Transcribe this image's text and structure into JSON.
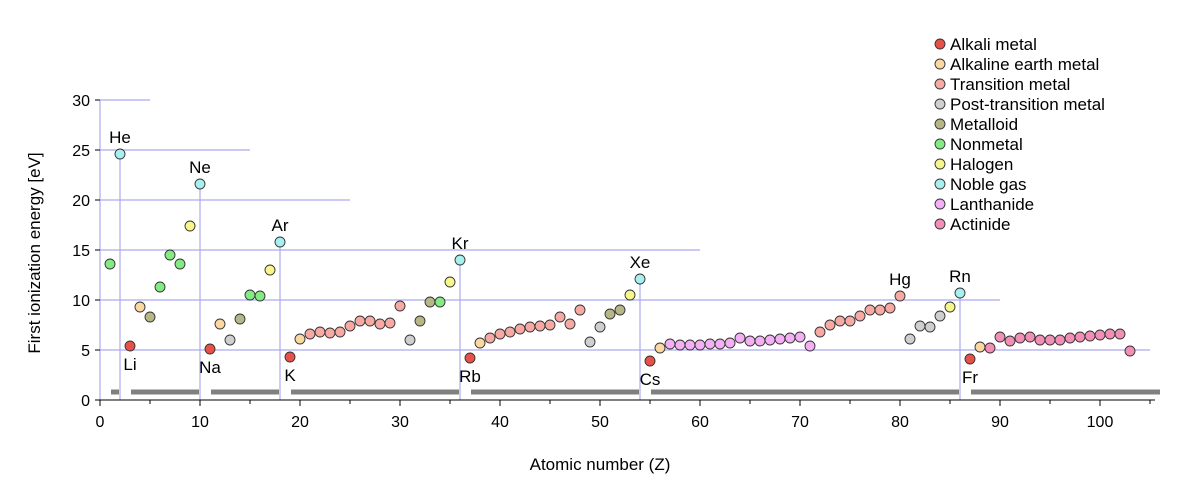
{
  "chart_data": {
    "type": "scatter",
    "title": "",
    "xlabel": "Atomic number (Z)",
    "ylabel": "First ionization energy [eV]",
    "xlim": [
      0,
      105
    ],
    "ylim": [
      0,
      30
    ],
    "x_ticks": [
      0,
      10,
      20,
      30,
      40,
      50,
      60,
      70,
      80,
      90,
      100
    ],
    "y_ticks": [
      0,
      5,
      10,
      15,
      20,
      25,
      30
    ],
    "grid": "partial guide lines to noble-gas peaks",
    "legend_position": "top-right",
    "categories": [
      {
        "key": "alkali",
        "name": "Alkali metal",
        "color": "#e8504a"
      },
      {
        "key": "alkaline",
        "name": "Alkaline earth metal",
        "color": "#fbd7a2"
      },
      {
        "key": "transition",
        "name": "Transition metal",
        "color": "#f7a9a3"
      },
      {
        "key": "post",
        "name": "Post-transition metal",
        "color": "#cfcfcf"
      },
      {
        "key": "metalloid",
        "name": "Metalloid",
        "color": "#b6b686"
      },
      {
        "key": "nonmetal",
        "name": "Nonmetal",
        "color": "#84ea84"
      },
      {
        "key": "halogen",
        "name": "Halogen",
        "color": "#f6f68a"
      },
      {
        "key": "noble",
        "name": "Noble gas",
        "color": "#a8f0f0"
      },
      {
        "key": "lanthanide",
        "name": "Lanthanide",
        "color": "#f4b0f4"
      },
      {
        "key": "actinide",
        "name": "Actinide",
        "color": "#f28fb6"
      }
    ],
    "points": [
      {
        "z": 1,
        "e": 13.6,
        "cat": "nonmetal"
      },
      {
        "z": 2,
        "e": 24.6,
        "cat": "noble",
        "label": "He"
      },
      {
        "z": 3,
        "e": 5.4,
        "cat": "alkali",
        "label": "Li"
      },
      {
        "z": 4,
        "e": 9.3,
        "cat": "alkaline"
      },
      {
        "z": 5,
        "e": 8.3,
        "cat": "metalloid"
      },
      {
        "z": 6,
        "e": 11.3,
        "cat": "nonmetal"
      },
      {
        "z": 7,
        "e": 14.5,
        "cat": "nonmetal"
      },
      {
        "z": 8,
        "e": 13.6,
        "cat": "nonmetal"
      },
      {
        "z": 9,
        "e": 17.4,
        "cat": "halogen"
      },
      {
        "z": 10,
        "e": 21.6,
        "cat": "noble",
        "label": "Ne"
      },
      {
        "z": 11,
        "e": 5.1,
        "cat": "alkali",
        "label": "Na"
      },
      {
        "z": 12,
        "e": 7.6,
        "cat": "alkaline"
      },
      {
        "z": 13,
        "e": 6.0,
        "cat": "post"
      },
      {
        "z": 14,
        "e": 8.1,
        "cat": "metalloid"
      },
      {
        "z": 15,
        "e": 10.5,
        "cat": "nonmetal"
      },
      {
        "z": 16,
        "e": 10.4,
        "cat": "nonmetal"
      },
      {
        "z": 17,
        "e": 13.0,
        "cat": "halogen"
      },
      {
        "z": 18,
        "e": 15.8,
        "cat": "noble",
        "label": "Ar"
      },
      {
        "z": 19,
        "e": 4.3,
        "cat": "alkali",
        "label": "K"
      },
      {
        "z": 20,
        "e": 6.1,
        "cat": "alkaline"
      },
      {
        "z": 21,
        "e": 6.6,
        "cat": "transition"
      },
      {
        "z": 22,
        "e": 6.8,
        "cat": "transition"
      },
      {
        "z": 23,
        "e": 6.7,
        "cat": "transition"
      },
      {
        "z": 24,
        "e": 6.8,
        "cat": "transition"
      },
      {
        "z": 25,
        "e": 7.4,
        "cat": "transition"
      },
      {
        "z": 26,
        "e": 7.9,
        "cat": "transition"
      },
      {
        "z": 27,
        "e": 7.9,
        "cat": "transition"
      },
      {
        "z": 28,
        "e": 7.6,
        "cat": "transition"
      },
      {
        "z": 29,
        "e": 7.7,
        "cat": "transition"
      },
      {
        "z": 30,
        "e": 9.4,
        "cat": "transition"
      },
      {
        "z": 31,
        "e": 6.0,
        "cat": "post"
      },
      {
        "z": 32,
        "e": 7.9,
        "cat": "metalloid"
      },
      {
        "z": 33,
        "e": 9.8,
        "cat": "metalloid"
      },
      {
        "z": 34,
        "e": 9.8,
        "cat": "nonmetal"
      },
      {
        "z": 35,
        "e": 11.8,
        "cat": "halogen"
      },
      {
        "z": 36,
        "e": 14.0,
        "cat": "noble",
        "label": "Kr"
      },
      {
        "z": 37,
        "e": 4.2,
        "cat": "alkali",
        "label": "Rb"
      },
      {
        "z": 38,
        "e": 5.7,
        "cat": "alkaline"
      },
      {
        "z": 39,
        "e": 6.2,
        "cat": "transition"
      },
      {
        "z": 40,
        "e": 6.6,
        "cat": "transition"
      },
      {
        "z": 41,
        "e": 6.8,
        "cat": "transition"
      },
      {
        "z": 42,
        "e": 7.1,
        "cat": "transition"
      },
      {
        "z": 43,
        "e": 7.3,
        "cat": "transition"
      },
      {
        "z": 44,
        "e": 7.4,
        "cat": "transition"
      },
      {
        "z": 45,
        "e": 7.5,
        "cat": "transition"
      },
      {
        "z": 46,
        "e": 8.3,
        "cat": "transition"
      },
      {
        "z": 47,
        "e": 7.6,
        "cat": "transition"
      },
      {
        "z": 48,
        "e": 9.0,
        "cat": "transition"
      },
      {
        "z": 49,
        "e": 5.8,
        "cat": "post"
      },
      {
        "z": 50,
        "e": 7.3,
        "cat": "post"
      },
      {
        "z": 51,
        "e": 8.6,
        "cat": "metalloid"
      },
      {
        "z": 52,
        "e": 9.0,
        "cat": "metalloid"
      },
      {
        "z": 53,
        "e": 10.5,
        "cat": "halogen"
      },
      {
        "z": 54,
        "e": 12.1,
        "cat": "noble",
        "label": "Xe"
      },
      {
        "z": 55,
        "e": 3.9,
        "cat": "alkali",
        "label": "Cs"
      },
      {
        "z": 56,
        "e": 5.2,
        "cat": "alkaline"
      },
      {
        "z": 57,
        "e": 5.6,
        "cat": "lanthanide"
      },
      {
        "z": 58,
        "e": 5.5,
        "cat": "lanthanide"
      },
      {
        "z": 59,
        "e": 5.5,
        "cat": "lanthanide"
      },
      {
        "z": 60,
        "e": 5.5,
        "cat": "lanthanide"
      },
      {
        "z": 61,
        "e": 5.6,
        "cat": "lanthanide"
      },
      {
        "z": 62,
        "e": 5.6,
        "cat": "lanthanide"
      },
      {
        "z": 63,
        "e": 5.7,
        "cat": "lanthanide"
      },
      {
        "z": 64,
        "e": 6.2,
        "cat": "lanthanide"
      },
      {
        "z": 65,
        "e": 5.9,
        "cat": "lanthanide"
      },
      {
        "z": 66,
        "e": 5.9,
        "cat": "lanthanide"
      },
      {
        "z": 67,
        "e": 6.0,
        "cat": "lanthanide"
      },
      {
        "z": 68,
        "e": 6.1,
        "cat": "lanthanide"
      },
      {
        "z": 69,
        "e": 6.2,
        "cat": "lanthanide"
      },
      {
        "z": 70,
        "e": 6.3,
        "cat": "lanthanide"
      },
      {
        "z": 71,
        "e": 5.4,
        "cat": "lanthanide"
      },
      {
        "z": 72,
        "e": 6.8,
        "cat": "transition"
      },
      {
        "z": 73,
        "e": 7.5,
        "cat": "transition"
      },
      {
        "z": 74,
        "e": 7.9,
        "cat": "transition"
      },
      {
        "z": 75,
        "e": 7.9,
        "cat": "transition"
      },
      {
        "z": 76,
        "e": 8.4,
        "cat": "transition"
      },
      {
        "z": 77,
        "e": 9.0,
        "cat": "transition"
      },
      {
        "z": 78,
        "e": 9.0,
        "cat": "transition"
      },
      {
        "z": 79,
        "e": 9.2,
        "cat": "transition"
      },
      {
        "z": 80,
        "e": 10.4,
        "cat": "transition",
        "label": "Hg"
      },
      {
        "z": 81,
        "e": 6.1,
        "cat": "post"
      },
      {
        "z": 82,
        "e": 7.4,
        "cat": "post"
      },
      {
        "z": 83,
        "e": 7.3,
        "cat": "post"
      },
      {
        "z": 84,
        "e": 8.4,
        "cat": "post"
      },
      {
        "z": 85,
        "e": 9.3,
        "cat": "halogen"
      },
      {
        "z": 86,
        "e": 10.7,
        "cat": "noble",
        "label": "Rn"
      },
      {
        "z": 87,
        "e": 4.1,
        "cat": "alkali",
        "label": "Fr"
      },
      {
        "z": 88,
        "e": 5.3,
        "cat": "alkaline"
      },
      {
        "z": 89,
        "e": 5.2,
        "cat": "actinide"
      },
      {
        "z": 90,
        "e": 6.3,
        "cat": "actinide"
      },
      {
        "z": 91,
        "e": 5.9,
        "cat": "actinide"
      },
      {
        "z": 92,
        "e": 6.2,
        "cat": "actinide"
      },
      {
        "z": 93,
        "e": 6.3,
        "cat": "actinide"
      },
      {
        "z": 94,
        "e": 6.0,
        "cat": "actinide"
      },
      {
        "z": 95,
        "e": 6.0,
        "cat": "actinide"
      },
      {
        "z": 96,
        "e": 6.0,
        "cat": "actinide"
      },
      {
        "z": 97,
        "e": 6.2,
        "cat": "actinide"
      },
      {
        "z": 98,
        "e": 6.3,
        "cat": "actinide"
      },
      {
        "z": 99,
        "e": 6.4,
        "cat": "actinide"
      },
      {
        "z": 100,
        "e": 6.5,
        "cat": "actinide"
      },
      {
        "z": 101,
        "e": 6.6,
        "cat": "actinide"
      },
      {
        "z": 102,
        "e": 6.6,
        "cat": "actinide"
      },
      {
        "z": 103,
        "e": 4.9,
        "cat": "actinide"
      }
    ],
    "period_bands": [
      [
        1,
        2
      ],
      [
        3,
        10
      ],
      [
        11,
        18
      ],
      [
        19,
        36
      ],
      [
        37,
        54
      ],
      [
        55,
        86
      ],
      [
        87,
        105
      ]
    ],
    "colors": {
      "guide_line": "#aaaaee",
      "band": "#808080",
      "axis": "#000000"
    }
  }
}
